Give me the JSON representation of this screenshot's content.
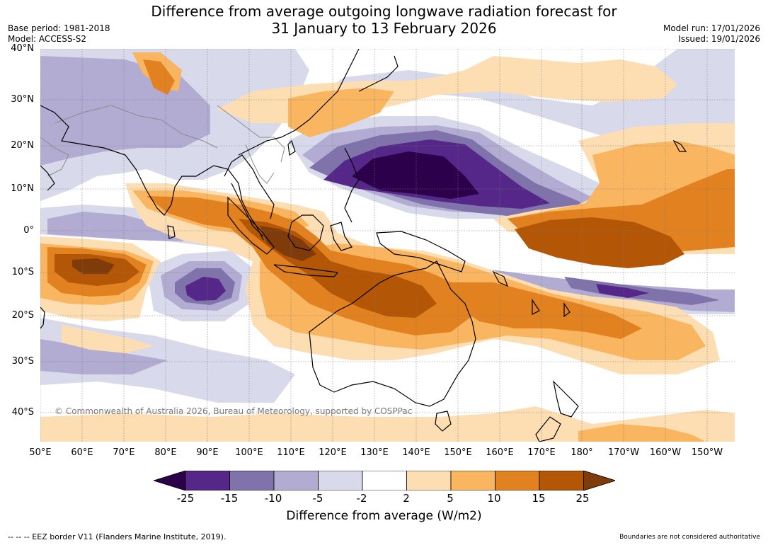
{
  "header": {
    "title_line1": "Difference from average outgoing longwave radiation forecast for",
    "title_line2": "31 January to 13 February 2026",
    "base_period": "Base period: 1981-2018",
    "model": "Model: ACCESS-S2",
    "model_run": "Model run: 17/01/2026",
    "issued": "Issued: 19/01/2026"
  },
  "map": {
    "lat_labels": [
      "40°N",
      "30°N",
      "20°N",
      "10°N",
      "0°",
      "10°S",
      "20°S",
      "30°S",
      "40°S"
    ],
    "lon_labels": [
      "50°E",
      "60°E",
      "70°E",
      "80°E",
      "90°E",
      "100°E",
      "110°E",
      "120°E",
      "130°E",
      "140°E",
      "150°E",
      "160°E",
      "170°E",
      "180°",
      "170°W",
      "160°W",
      "150°W"
    ],
    "copyright": "© Commonwealth of Australia 2026, Bureau of Meteorology, supported by COSPPac",
    "colors": {
      "ocean_bg": "#ffffff",
      "p1": "#fddeb2",
      "p2": "#f9b55f",
      "p3": "#e2811f",
      "p4": "#b35606",
      "p5": "#7f3c0a",
      "n1": "#d8daeb",
      "n2": "#b2abd2",
      "n3": "#8073ac",
      "n4": "#542788",
      "n5": "#2d004b",
      "coast": "#000000",
      "border": "#8c8c8c"
    }
  },
  "legend": {
    "ticks": [
      "-25",
      "-15",
      "-10",
      "-5",
      "-2",
      "2",
      "5",
      "10",
      "15",
      "25"
    ],
    "label": "Difference from average (W/m2)",
    "colors": [
      "#2d004b",
      "#542788",
      "#8073ac",
      "#b2abd2",
      "#d8daeb",
      "#ffffff",
      "#fddeb2",
      "#f9b55f",
      "#e2811f",
      "#b35606",
      "#7f3c0a"
    ]
  },
  "footer": {
    "eez_note": "--  --  -- EEZ border V11 (Flanders Marine Institute, 2019).",
    "boundaries_note": "Boundaries are not considered authoritative"
  }
}
